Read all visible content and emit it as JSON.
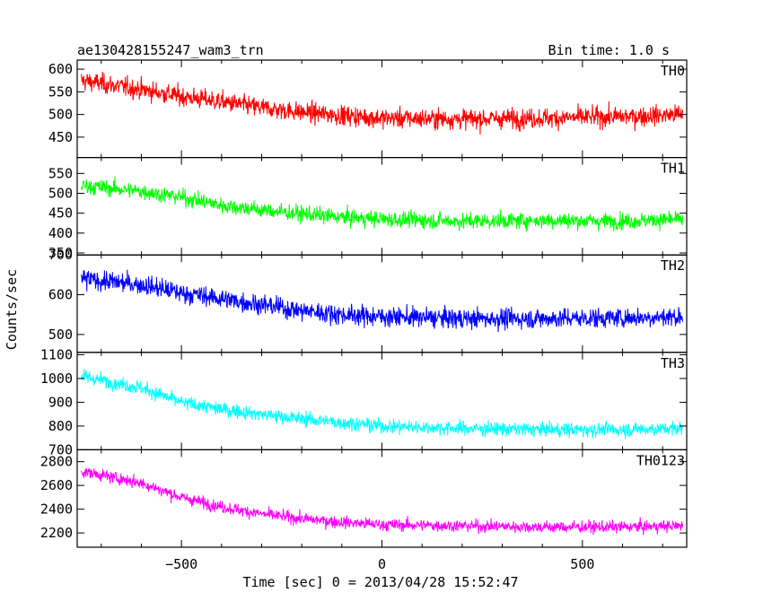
{
  "chart_data": {
    "type": "line",
    "title": "ae130428155247_wam3_trn",
    "subtitle": "Bin time: 1.0 s",
    "xlabel": "Time [sec] 0 = 2013/04/28 15:52:47",
    "ylabel": "Counts/sec",
    "xlim": [
      -760,
      760
    ],
    "x_ticks": [
      -500,
      0,
      500
    ],
    "x_tick_labels": [
      "−500",
      "0",
      "500"
    ],
    "series": [
      {
        "name": "TH0",
        "color": "#ff0000",
        "ylim": [
          405,
          620
        ],
        "y_ticks": [
          450,
          500,
          550,
          600
        ],
        "y_tick_labels": [
          "450",
          "500",
          "550",
          "600"
        ],
        "trend_t": [
          -750,
          -600,
          -500,
          -400,
          -300,
          -200,
          -100,
          0,
          200,
          400,
          600,
          750
        ],
        "trend_y": [
          575,
          555,
          540,
          528,
          515,
          505,
          498,
          492,
          490,
          492,
          495,
          500
        ],
        "noise": 28
      },
      {
        "name": "TH1",
        "color": "#00ff00",
        "ylim": [
          345,
          590
        ],
        "y_ticks": [
          350,
          400,
          450,
          500,
          550
        ],
        "y_tick_labels": [
          "350",
          "400",
          "450",
          "500",
          "550"
        ],
        "trend_t": [
          -750,
          -600,
          -500,
          -400,
          -300,
          -200,
          -100,
          0,
          200,
          400,
          600,
          750
        ],
        "trend_y": [
          520,
          505,
          490,
          470,
          458,
          448,
          440,
          435,
          430,
          432,
          430,
          435
        ],
        "noise": 26
      },
      {
        "name": "TH2",
        "color": "#0000ff",
        "ylim": [
          455,
          700
        ],
        "y_ticks": [
          500,
          600,
          700
        ],
        "y_tick_labels": [
          "500",
          "600",
          "700"
        ],
        "trend_t": [
          -750,
          -600,
          -500,
          -400,
          -300,
          -200,
          -100,
          0,
          200,
          400,
          600,
          750
        ],
        "trend_y": [
          640,
          625,
          605,
          590,
          575,
          560,
          550,
          545,
          540,
          540,
          542,
          545
        ],
        "noise": 32
      },
      {
        "name": "TH3",
        "color": "#00ffff",
        "ylim": [
          700,
          1110
        ],
        "y_ticks": [
          700,
          800,
          900,
          1000,
          1100
        ],
        "y_tick_labels": [
          "700",
          "800",
          "900",
          "1000",
          "1100"
        ],
        "trend_t": [
          -750,
          -600,
          -500,
          -400,
          -300,
          -200,
          -100,
          0,
          200,
          400,
          600,
          750
        ],
        "trend_y": [
          1010,
          960,
          900,
          870,
          850,
          830,
          815,
          800,
          790,
          785,
          785,
          790
        ],
        "noise": 38
      },
      {
        "name": "TH0123",
        "color": "#ff00ff",
        "ylim": [
          2080,
          2900
        ],
        "y_ticks": [
          2200,
          2400,
          2600,
          2800
        ],
        "y_tick_labels": [
          "2200",
          "2400",
          "2600",
          "2800"
        ],
        "trend_t": [
          -750,
          -600,
          -500,
          -400,
          -300,
          -200,
          -100,
          0,
          200,
          400,
          600,
          750
        ],
        "trend_y": [
          2720,
          2620,
          2500,
          2420,
          2360,
          2320,
          2290,
          2270,
          2260,
          2250,
          2250,
          2260
        ],
        "noise": 65
      }
    ]
  }
}
